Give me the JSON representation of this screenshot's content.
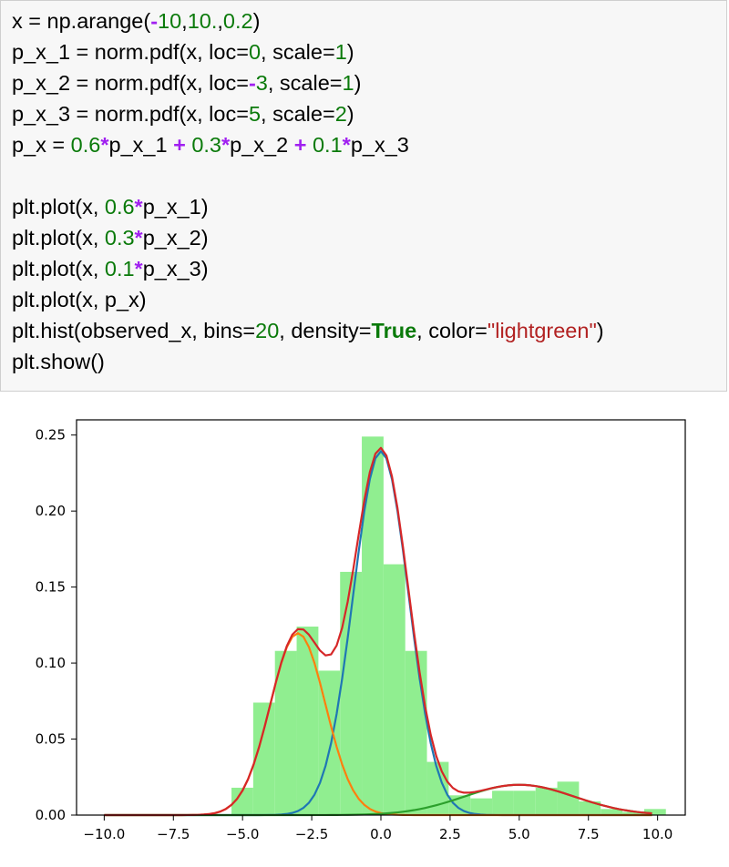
{
  "code": {
    "lines": [
      [
        {
          "t": "x = np.arange("
        },
        {
          "t": "-",
          "c": "op"
        },
        {
          "t": "10",
          "c": "num"
        },
        {
          "t": ","
        },
        {
          "t": "10.",
          "c": "num"
        },
        {
          "t": ","
        },
        {
          "t": "0.2",
          "c": "num"
        },
        {
          "t": ")"
        }
      ],
      [
        {
          "t": "p_x_1 = norm.pdf(x, loc="
        },
        {
          "t": "0",
          "c": "num"
        },
        {
          "t": ", scale="
        },
        {
          "t": "1",
          "c": "num"
        },
        {
          "t": ")"
        }
      ],
      [
        {
          "t": "p_x_2 = norm.pdf(x, loc="
        },
        {
          "t": "-",
          "c": "op"
        },
        {
          "t": "3",
          "c": "num"
        },
        {
          "t": ", scale="
        },
        {
          "t": "1",
          "c": "num"
        },
        {
          "t": ")"
        }
      ],
      [
        {
          "t": "p_x_3 = norm.pdf(x, loc="
        },
        {
          "t": "5",
          "c": "num"
        },
        {
          "t": ", scale="
        },
        {
          "t": "2",
          "c": "num"
        },
        {
          "t": ")"
        }
      ],
      [
        {
          "t": "p_x = "
        },
        {
          "t": "0.6",
          "c": "num"
        },
        {
          "t": "*",
          "c": "op"
        },
        {
          "t": "p_x_1 "
        },
        {
          "t": "+",
          "c": "op"
        },
        {
          "t": " "
        },
        {
          "t": "0.3",
          "c": "num"
        },
        {
          "t": "*",
          "c": "op"
        },
        {
          "t": "p_x_2 "
        },
        {
          "t": "+",
          "c": "op"
        },
        {
          "t": " "
        },
        {
          "t": "0.1",
          "c": "num"
        },
        {
          "t": "*",
          "c": "op"
        },
        {
          "t": "p_x_3"
        }
      ],
      [],
      [
        {
          "t": "plt.plot(x, "
        },
        {
          "t": "0.6",
          "c": "num"
        },
        {
          "t": "*",
          "c": "op"
        },
        {
          "t": "p_x_1)"
        }
      ],
      [
        {
          "t": "plt.plot(x, "
        },
        {
          "t": "0.3",
          "c": "num"
        },
        {
          "t": "*",
          "c": "op"
        },
        {
          "t": "p_x_2)"
        }
      ],
      [
        {
          "t": "plt.plot(x, "
        },
        {
          "t": "0.1",
          "c": "num"
        },
        {
          "t": "*",
          "c": "op"
        },
        {
          "t": "p_x_3)"
        }
      ],
      [
        {
          "t": "plt.plot(x, p_x)"
        }
      ],
      [
        {
          "t": "plt.hist(observed_x, bins="
        },
        {
          "t": "20",
          "c": "num"
        },
        {
          "t": ", density="
        },
        {
          "t": "True",
          "c": "kw"
        },
        {
          "t": ", color="
        },
        {
          "t": "\"lightgreen\"",
          "c": "str"
        },
        {
          "t": ")"
        }
      ],
      [
        {
          "t": "plt.show()"
        }
      ]
    ]
  },
  "chart_data": {
    "type": "line",
    "xlim": [
      -11.0,
      11.0
    ],
    "ylim": [
      0.0,
      0.26
    ],
    "x_ticks": [
      -10.0,
      -7.5,
      -5.0,
      -2.5,
      0.0,
      2.5,
      5.0,
      7.5,
      10.0
    ],
    "x_tick_labels": [
      "−10.0",
      "−7.5",
      "−5.0",
      "−2.5",
      "0.0",
      "2.5",
      "5.0",
      "7.5",
      "10.0"
    ],
    "y_ticks": [
      0.0,
      0.05,
      0.1,
      0.15,
      0.2,
      0.25
    ],
    "y_tick_labels": [
      "0.00",
      "0.05",
      "0.10",
      "0.15",
      "0.20",
      "0.25"
    ],
    "grid": false,
    "histogram": {
      "color": "#90ee90",
      "bin_edges": [
        -5.4,
        -4.615,
        -3.83,
        -3.045,
        -2.26,
        -1.475,
        -0.69,
        0.095,
        0.88,
        1.665,
        2.45,
        3.235,
        4.02,
        4.805,
        5.59,
        6.375,
        7.16,
        7.945,
        8.73,
        9.515,
        10.3
      ],
      "densities": [
        0.018,
        0.074,
        0.108,
        0.124,
        0.095,
        0.16,
        0.249,
        0.165,
        0.108,
        0.035,
        0.013,
        0.011,
        0.016,
        0.016,
        0.018,
        0.022,
        0.009,
        0.004,
        0.002,
        0.004
      ]
    },
    "series": [
      {
        "component": "0.6*p_x_1",
        "color": "#1f77b4",
        "loc": 0,
        "scale": 1,
        "weight": 0.6
      },
      {
        "component": "0.3*p_x_2",
        "color": "#ff7f0e",
        "loc": -3,
        "scale": 1,
        "weight": 0.3
      },
      {
        "component": "0.1*p_x_3",
        "color": "#2ca02c",
        "loc": 5,
        "scale": 2,
        "weight": 0.1
      },
      {
        "component": "p_x",
        "color": "#d62728",
        "mixture": true
      }
    ],
    "x_range": {
      "start": -10,
      "stop": 10.0,
      "step": 0.2
    }
  }
}
